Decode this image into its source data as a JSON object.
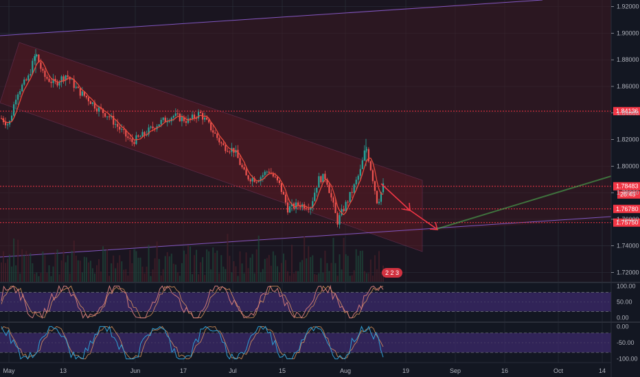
{
  "chart_data": [
    {
      "type": "candlestick",
      "panel": "price",
      "x_ticks": [
        "May",
        "13",
        "Jun",
        "17",
        "Jul",
        "15",
        "Aug",
        "19",
        "Sep",
        "16",
        "Oct",
        "14"
      ],
      "y_ticks": [
        "1.92000",
        "1.90000",
        "1.88000",
        "1.86000",
        "1.84000",
        "1.82000",
        "1.80000",
        "1.78000",
        "1.76000",
        "1.74000",
        "1.72000"
      ],
      "ylim": [
        1.713,
        1.925
      ],
      "price_levels": [
        {
          "label": "1.84136",
          "value": 1.84136,
          "color": "#f23645"
        },
        {
          "label": "1.78483",
          "value": 1.78483,
          "color": "#f23645"
        },
        {
          "label": "1.76780",
          "value": 1.7678,
          "color": "#f23645"
        },
        {
          "label": "1.75750",
          "value": 1.7575,
          "color": "#f23645"
        }
      ],
      "countdown": "28:45",
      "indicator_badge": "2 2 3",
      "close_trend": [
        {
          "t": 0,
          "v": 1.836
        },
        {
          "t": 0.02,
          "v": 1.831
        },
        {
          "t": 0.04,
          "v": 1.855
        },
        {
          "t": 0.07,
          "v": 1.866
        },
        {
          "t": 0.09,
          "v": 1.885
        },
        {
          "t": 0.11,
          "v": 1.868
        },
        {
          "t": 0.14,
          "v": 1.862
        },
        {
          "t": 0.17,
          "v": 1.869
        },
        {
          "t": 0.2,
          "v": 1.857
        },
        {
          "t": 0.23,
          "v": 1.85
        },
        {
          "t": 0.25,
          "v": 1.844
        },
        {
          "t": 0.28,
          "v": 1.838
        },
        {
          "t": 0.31,
          "v": 1.828
        },
        {
          "t": 0.34,
          "v": 1.818
        },
        {
          "t": 0.37,
          "v": 1.823
        },
        {
          "t": 0.41,
          "v": 1.832
        },
        {
          "t": 0.45,
          "v": 1.838
        },
        {
          "t": 0.49,
          "v": 1.834
        },
        {
          "t": 0.52,
          "v": 1.84
        },
        {
          "t": 0.55,
          "v": 1.828
        },
        {
          "t": 0.58,
          "v": 1.815
        },
        {
          "t": 0.61,
          "v": 1.812
        },
        {
          "t": 0.64,
          "v": 1.792
        },
        {
          "t": 0.67,
          "v": 1.79
        },
        {
          "t": 0.7,
          "v": 1.797
        },
        {
          "t": 0.73,
          "v": 1.785
        },
        {
          "t": 0.75,
          "v": 1.768
        },
        {
          "t": 0.78,
          "v": 1.771
        },
        {
          "t": 0.81,
          "v": 1.77
        },
        {
          "t": 0.83,
          "v": 1.79
        },
        {
          "t": 0.85,
          "v": 1.792
        },
        {
          "t": 0.865,
          "v": 1.775
        },
        {
          "t": 0.88,
          "v": 1.758
        },
        {
          "t": 0.9,
          "v": 1.77
        },
        {
          "t": 0.92,
          "v": 1.782
        },
        {
          "t": 0.94,
          "v": 1.796
        },
        {
          "t": 0.955,
          "v": 1.815
        },
        {
          "t": 0.97,
          "v": 1.795
        },
        {
          "t": 0.985,
          "v": 1.772
        },
        {
          "t": 1.0,
          "v": 1.785
        }
      ]
    },
    {
      "type": "line",
      "panel": "oscillator-1",
      "y_ticks": [
        "100.00",
        "50.00",
        "0.00"
      ],
      "ylim": [
        -5,
        105
      ],
      "bands": [
        80,
        20
      ]
    },
    {
      "type": "line",
      "panel": "oscillator-2",
      "y_ticks": [
        "0.00",
        "-50.00",
        "-100.00"
      ],
      "ylim": [
        -105,
        5
      ],
      "bands": [
        -20,
        -80
      ]
    }
  ],
  "colors": {
    "background": "#131722",
    "bull": "#26a69a",
    "bear": "#ef5350",
    "level": "#f23645",
    "channel": "#7e57c2",
    "projection": "#4caf50",
    "osc_line": "#d17a7a",
    "osc2_line": "#2e9fd6"
  }
}
